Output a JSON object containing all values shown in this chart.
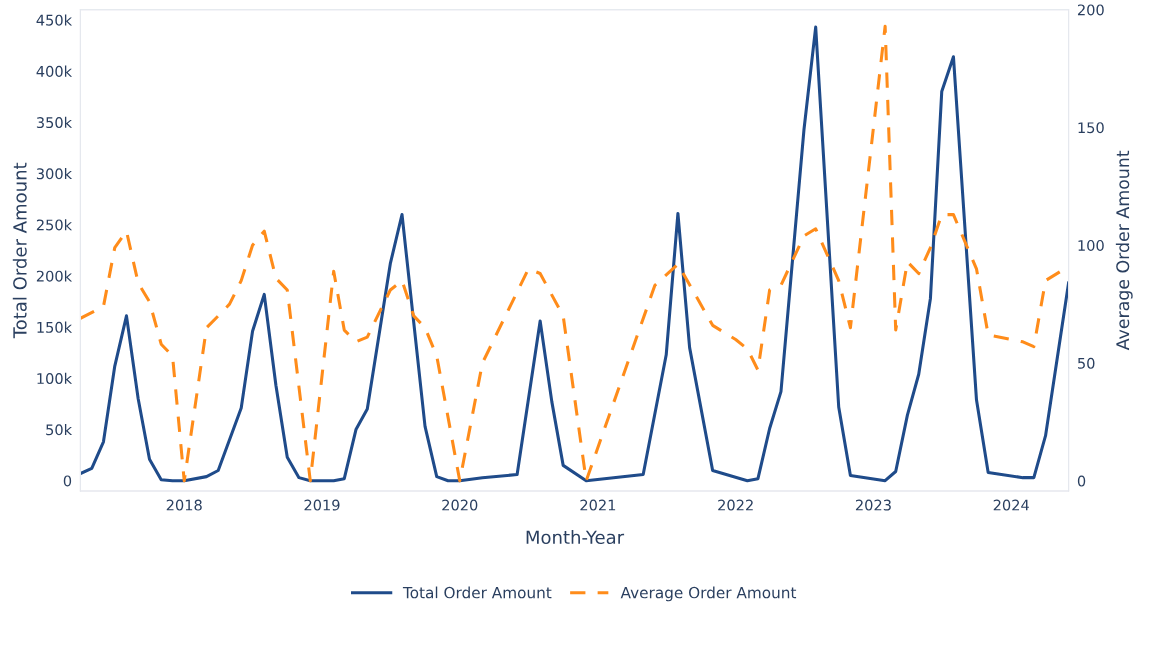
{
  "chart_data": {
    "type": "line",
    "xlabel": "Month-Year",
    "ylabel": "Total Order Amount",
    "y2label": "Average Order Amount",
    "xlim": [
      "2017-04",
      "2024-06"
    ],
    "xticks": [
      "2018",
      "2019",
      "2020",
      "2021",
      "2022",
      "2023",
      "2024"
    ],
    "ylim": [
      -10000,
      460000
    ],
    "yticks": [
      0,
      {
        "value": 50000,
        "label": "50k"
      },
      {
        "value": 100000,
        "label": "100k"
      },
      {
        "value": 150000,
        "label": "150k"
      },
      {
        "value": 200000,
        "label": "200k"
      },
      {
        "value": 250000,
        "label": "250k"
      },
      {
        "value": 300000,
        "label": "300k"
      },
      {
        "value": 350000,
        "label": "350k"
      },
      {
        "value": 400000,
        "label": "400k"
      },
      {
        "value": 450000,
        "label": "450k"
      }
    ],
    "y2lim": [
      -4.3,
      200
    ],
    "y2ticks": [
      0,
      50,
      100,
      150,
      200
    ],
    "grid": false,
    "legend": "bottom",
    "series": [
      {
        "name": "Total Order Amount",
        "color": "#1f4b8a",
        "line_style": "solid",
        "x": [
          "2017-04",
          "2017-05",
          "2017-06",
          "2017-07",
          "2017-08",
          "2017-09",
          "2017-10",
          "2017-11",
          "2017-12",
          "2018-01",
          "2018-03",
          "2018-04",
          "2018-06",
          "2018-07",
          "2018-08",
          "2018-09",
          "2018-10",
          "2018-11",
          "2018-12",
          "2019-02",
          "2019-03",
          "2019-04",
          "2019-05",
          "2019-07",
          "2019-08",
          "2019-10",
          "2019-11",
          "2019-12",
          "2020-01",
          "2020-03",
          "2020-06",
          "2020-08",
          "2020-09",
          "2020-10",
          "2020-12",
          "2021-05",
          "2021-07",
          "2021-08",
          "2021-09",
          "2021-11",
          "2022-02",
          "2022-03",
          "2022-04",
          "2022-05",
          "2022-07",
          "2022-08",
          "2022-10",
          "2022-11",
          "2023-02",
          "2023-03",
          "2023-04",
          "2023-05",
          "2023-06",
          "2023-07",
          "2023-08",
          "2023-10",
          "2023-11",
          "2024-02",
          "2024-03",
          "2024-04",
          "2024-06"
        ],
        "values": [
          7000,
          12000,
          38000,
          112000,
          161000,
          80000,
          21000,
          1000,
          0,
          0,
          4000,
          10000,
          71000,
          146000,
          182000,
          93000,
          23000,
          3000,
          0,
          0,
          2000,
          50000,
          70000,
          212000,
          260000,
          53000,
          4000,
          0,
          0,
          3000,
          6000,
          156000,
          77000,
          15000,
          0,
          6000,
          123000,
          261000,
          130000,
          10000,
          0,
          2000,
          51000,
          87000,
          343000,
          443000,
          72000,
          5000,
          0,
          9000,
          64000,
          104000,
          178000,
          380000,
          414000,
          79000,
          8000,
          3000,
          3000,
          44000,
          193000
        ]
      },
      {
        "name": "Average Order Amount",
        "color": "#ff8c1a",
        "axis": "y2",
        "line_style": "dashed",
        "x": [
          "2017-04",
          "2017-06",
          "2017-07",
          "2017-08",
          "2017-09",
          "2017-10",
          "2017-11",
          "2017-12",
          "2018-01",
          "2018-03",
          "2018-04",
          "2018-05",
          "2018-06",
          "2018-07",
          "2018-08",
          "2018-09",
          "2018-10",
          "2018-12",
          "2019-02",
          "2019-03",
          "2019-04",
          "2019-05",
          "2019-07",
          "2019-08",
          "2019-09",
          "2019-10",
          "2019-11",
          "2020-01",
          "2020-03",
          "2020-07",
          "2020-08",
          "2020-10",
          "2020-12",
          "2021-06",
          "2021-08",
          "2021-11",
          "2022-01",
          "2022-02",
          "2022-03",
          "2022-04",
          "2022-05",
          "2022-07",
          "2022-08",
          "2022-10",
          "2022-11",
          "2023-02",
          "2023-03",
          "2023-04",
          "2023-05",
          "2023-06",
          "2023-07",
          "2023-08",
          "2023-10",
          "2023-11",
          "2024-02",
          "2024-03",
          "2024-04",
          "2024-06"
        ],
        "values": [
          69,
          74,
          99,
          106,
          84,
          76,
          58,
          53,
          0,
          65,
          70,
          75,
          85,
          100,
          106,
          86,
          81,
          0,
          89,
          64,
          59,
          61,
          81,
          85,
          70,
          65,
          53,
          0,
          50,
          90,
          88,
          70,
          0,
          83,
          92,
          66,
          60,
          56,
          47,
          81,
          83,
          104,
          107,
          85,
          65,
          193,
          64,
          93,
          88,
          99,
          113,
          113,
          90,
          62,
          59,
          57,
          85,
          91
        ]
      }
    ]
  }
}
